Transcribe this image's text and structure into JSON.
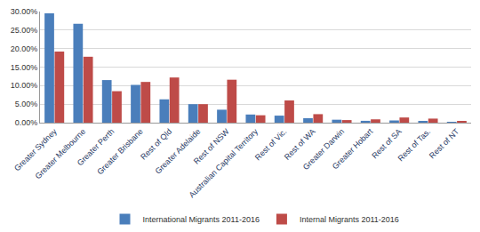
{
  "chart_data": {
    "type": "bar",
    "categories": [
      "Greater Sydney",
      "Greater Melbourne",
      "Greater Perth",
      "Greater Brisbane",
      "Rest of Qld",
      "Greater Adelaide",
      "Rest of NSW",
      "Australian Capital Territory",
      "Rest of Vic.",
      "Rest of WA",
      "Greater Darwin",
      "Greater Hobart",
      "Rest of SA",
      "Rest of Tas.",
      "Rest of NT"
    ],
    "series": [
      {
        "name": "International Migrants 2011-2016",
        "color": "#4a7ebb",
        "values": [
          29.5,
          26.7,
          11.5,
          10.2,
          6.3,
          5.0,
          3.5,
          2.2,
          1.9,
          1.2,
          0.8,
          0.5,
          0.6,
          0.4,
          0.2
        ]
      },
      {
        "name": "Internal Migrants 2011-2016",
        "color": "#be4b48",
        "values": [
          19.2,
          17.8,
          8.5,
          11.0,
          12.2,
          5.0,
          11.6,
          2.0,
          6.0,
          2.3,
          0.7,
          0.9,
          1.4,
          1.1,
          0.3
        ]
      }
    ],
    "ylim": [
      0,
      30
    ],
    "yticks": [
      {
        "value": 0,
        "label": "0.00%"
      },
      {
        "value": 5,
        "label": "5.00%"
      },
      {
        "value": 10,
        "label": "10.00%"
      },
      {
        "value": 15,
        "label": "15.00%"
      },
      {
        "value": 20,
        "label": "20.00%"
      },
      {
        "value": 25,
        "label": "25.00%"
      },
      {
        "value": 30,
        "label": "30.00%"
      }
    ],
    "grid": true,
    "legend": "bottom"
  }
}
